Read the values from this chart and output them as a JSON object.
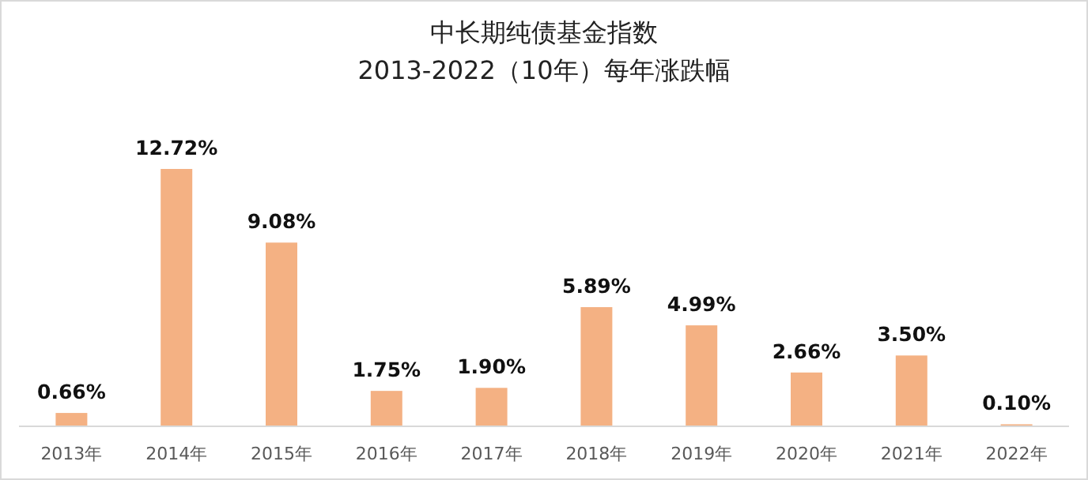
{
  "chart_data": {
    "type": "bar",
    "title": "中长期纯债基金指数",
    "subtitle": "2013-2022（10年）每年涨跌幅",
    "categories": [
      "2013年",
      "2014年",
      "2015年",
      "2016年",
      "2017年",
      "2018年",
      "2019年",
      "2020年",
      "2021年",
      "2022年"
    ],
    "values": [
      0.66,
      12.72,
      9.08,
      1.75,
      1.9,
      5.89,
      4.99,
      2.66,
      3.5,
      0.1
    ],
    "value_labels": [
      "0.66%",
      "12.72%",
      "9.08%",
      "1.75%",
      "1.90%",
      "5.89%",
      "4.99%",
      "2.66%",
      "3.50%",
      "0.10%"
    ],
    "color": "#f4b183"
  }
}
